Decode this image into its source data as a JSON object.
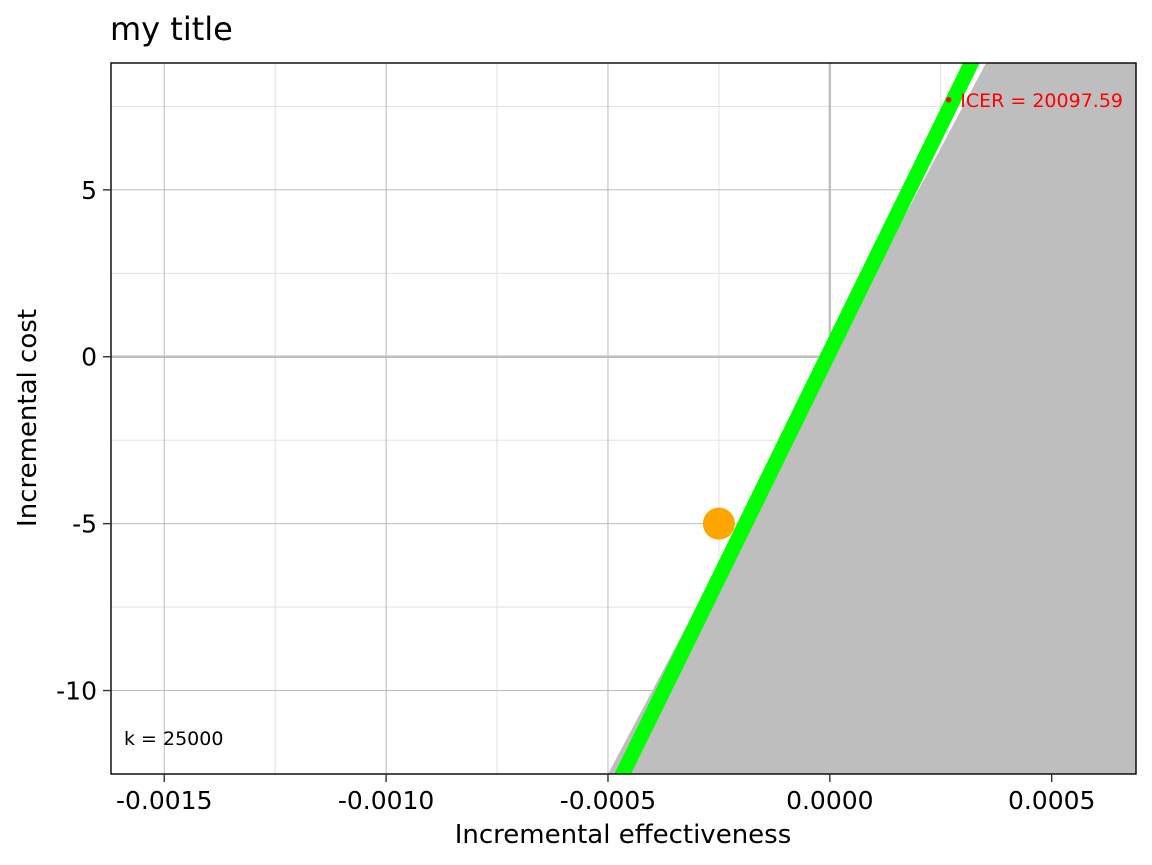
{
  "chart_data": {
    "type": "scatter",
    "title": "my title",
    "xlabel": "Incremental effectiveness",
    "ylabel": "Incremental cost",
    "xlim": [
      -0.00162,
      0.00069
    ],
    "ylim": [
      -12.5,
      8.8
    ],
    "x_ticks": [
      -0.0015,
      -0.001,
      -0.0005,
      0,
      0.0005
    ],
    "x_tick_labels": [
      "-0.0015",
      "-0.0010",
      "-0.0005",
      "0.0000",
      "0.0005"
    ],
    "y_ticks": [
      -10,
      -5,
      0,
      5
    ],
    "y_tick_labels": [
      "-10",
      "-5",
      "0",
      "5"
    ],
    "x_minor_ticks": [
      -0.00125,
      -0.00075,
      -0.00025,
      0.00025
    ],
    "y_minor_ticks": [
      -7.5,
      -2.5,
      2.5,
      7.5
    ],
    "grid": true,
    "threshold": {
      "k": 25000,
      "label": "k = 25000",
      "line_color": "#00ff00",
      "region_color": "#bebebe"
    },
    "points": [
      {
        "x": -0.00025,
        "y": -5,
        "color": "#ffa500"
      }
    ],
    "icer": {
      "label": "• ICER = 20097.59",
      "color": "#ff0000"
    }
  }
}
